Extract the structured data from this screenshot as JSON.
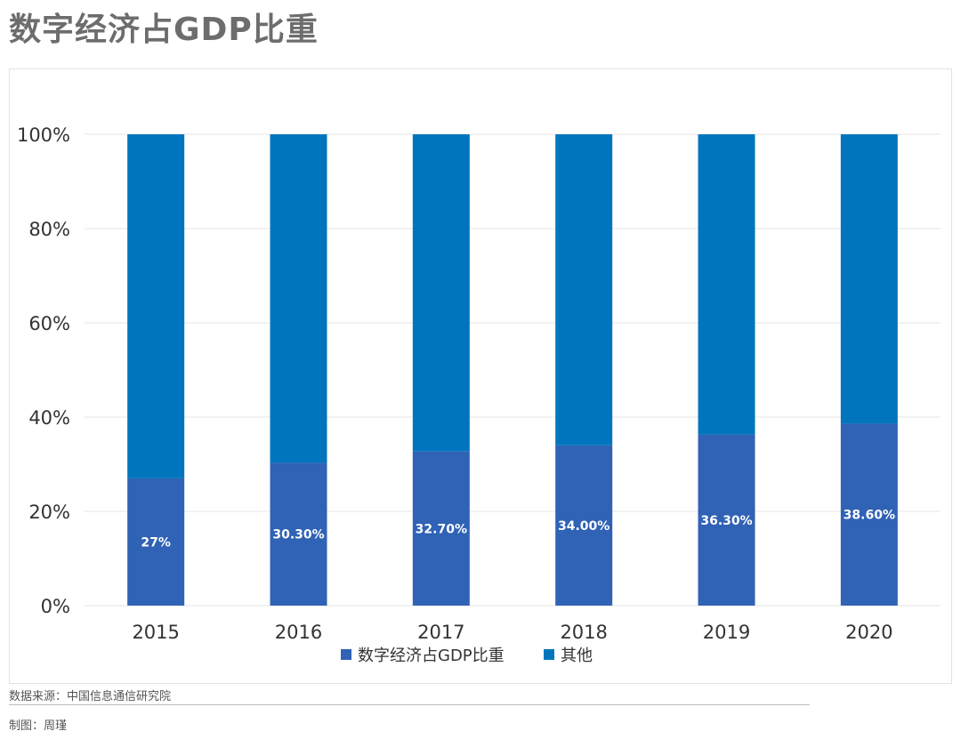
{
  "title": "数字经济占GDP比重",
  "source_text": "数据来源：中国信息通信研究院",
  "author_text": "制图：周瑾",
  "colors": {
    "digital": "#3062b5",
    "other": "#0075bd",
    "grid": "#e4e4e4",
    "axis_text": "#333333",
    "label_text": "#ffffff"
  },
  "chart_data": {
    "type": "bar",
    "stacked": true,
    "categories": [
      "2015",
      "2016",
      "2017",
      "2018",
      "2019",
      "2020"
    ],
    "series": [
      {
        "name": "数字经济占GDP比重",
        "values": [
          27,
          30.3,
          32.7,
          34.0,
          36.3,
          38.6
        ]
      },
      {
        "name": "其他",
        "values": [
          73,
          69.7,
          67.3,
          66.0,
          63.7,
          61.4
        ]
      }
    ],
    "data_labels": [
      "27%",
      "30.30%",
      "32.70%",
      "34.00%",
      "36.30%",
      "38.60%"
    ],
    "yticks": [
      "0%",
      "20%",
      "40%",
      "60%",
      "80%",
      "100%"
    ],
    "ylim": [
      0,
      100
    ],
    "grid": true,
    "legend_position": "bottom"
  }
}
